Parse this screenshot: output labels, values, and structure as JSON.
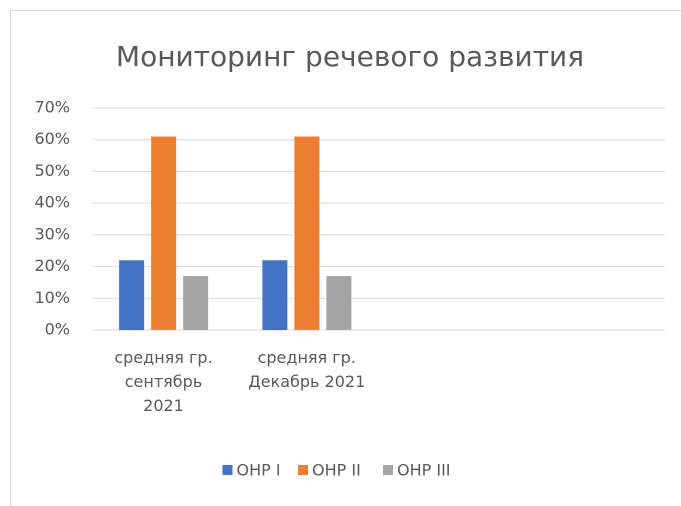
{
  "chart_data": {
    "type": "bar",
    "title": "Мониторинг речевого развития",
    "categories": [
      "средняя гр.\nсентябрь\n2021",
      "средняя гр.\nДекабрь 2021",
      null,
      null
    ],
    "series": [
      {
        "name": "ОНР I",
        "color": "#4472c4",
        "values": [
          22,
          22,
          null,
          null
        ]
      },
      {
        "name": "ОНР II",
        "color": "#ed7d31",
        "values": [
          61,
          61,
          null,
          null
        ]
      },
      {
        "name": "ОНР III",
        "color": "#a5a5a5",
        "values": [
          17,
          17,
          null,
          null
        ]
      }
    ],
    "ylim": [
      0,
      70
    ],
    "yticks": [
      {
        "value": 0,
        "label": "0%"
      },
      {
        "value": 10,
        "label": "10%"
      },
      {
        "value": 20,
        "label": "20%"
      },
      {
        "value": 30,
        "label": "30%"
      },
      {
        "value": 40,
        "label": "40%"
      },
      {
        "value": 50,
        "label": "50%"
      },
      {
        "value": 60,
        "label": "60%"
      },
      {
        "value": 70,
        "label": "70%"
      }
    ],
    "grid": true,
    "legend": "bottom"
  }
}
